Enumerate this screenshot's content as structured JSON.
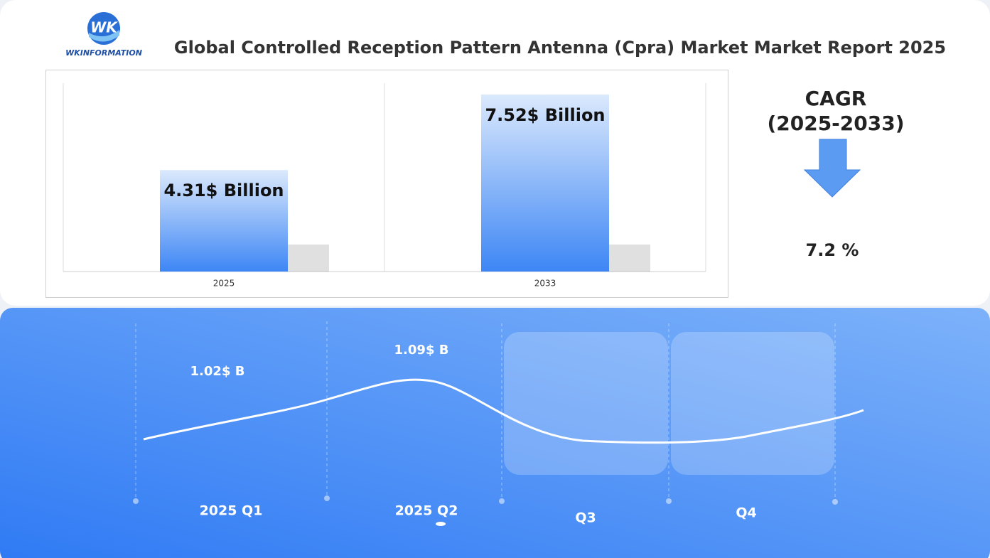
{
  "header": {
    "logo_text": "WKINFORMATION",
    "title": "Global Controlled Reception Pattern Antenna (Cpra) Market Market Report 2025"
  },
  "chart_data": {
    "type": "bar",
    "categories": [
      "2025",
      "2033"
    ],
    "values": [
      4.31,
      7.52
    ],
    "value_labels": [
      "4.31$ Billion",
      "7.52$ Billion"
    ],
    "color": "#3d86f5",
    "ylim": [
      0,
      8
    ]
  },
  "cagr": {
    "label": "CAGR",
    "period": "(2025-2033)",
    "value": "7.2 %"
  },
  "timeline": {
    "quarters": [
      "2025 Q1",
      "2025 Q2",
      "Q3",
      "Q4"
    ],
    "value_labels": [
      "1.02$ B",
      "1.09$ B"
    ]
  }
}
